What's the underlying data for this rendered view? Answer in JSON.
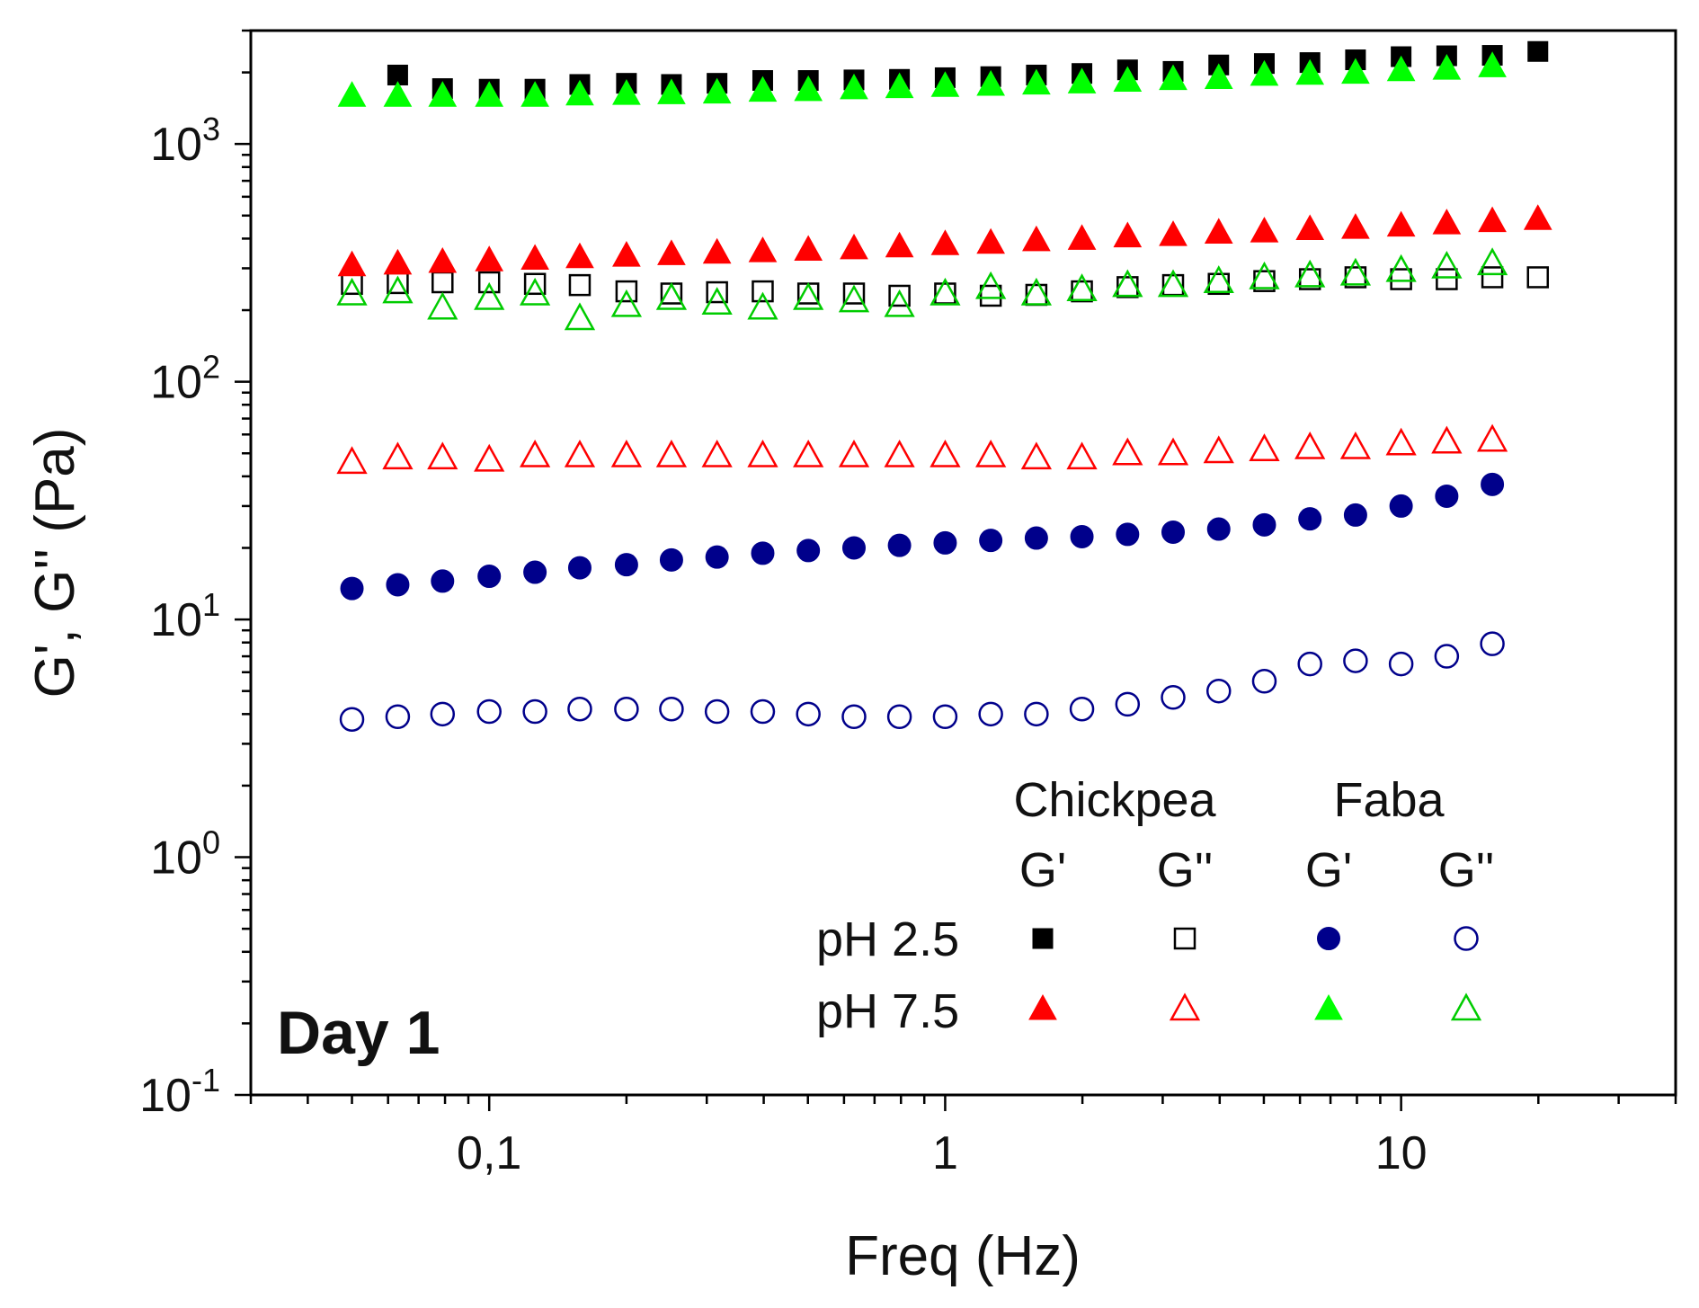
{
  "chart_data": {
    "type": "scatter",
    "title": "",
    "xlabel": "Freq (Hz)",
    "ylabel": "G', G'' (Pa)",
    "xscale": "log",
    "yscale": "log",
    "xlim": [
      0.03,
      40
    ],
    "ylim": [
      0.1,
      3000
    ],
    "x_ticks": [
      {
        "value": 0.1,
        "label": "0,1"
      },
      {
        "value": 1,
        "label": "1"
      },
      {
        "value": 10,
        "label": "10"
      }
    ],
    "y_ticks": [
      {
        "value": 0.1,
        "base": "10",
        "exp": "-1"
      },
      {
        "value": 1,
        "base": "10",
        "exp": "0"
      },
      {
        "value": 10,
        "base": "10",
        "exp": "1"
      },
      {
        "value": 100,
        "base": "10",
        "exp": "2"
      },
      {
        "value": 1000,
        "base": "10",
        "exp": "3"
      }
    ],
    "annotation": "Day 1",
    "legend": {
      "position": "bottom-right",
      "groups": [
        "Chickpea",
        "Faba"
      ],
      "moduli": [
        "G'",
        "G''",
        "G'",
        "G''"
      ],
      "rows": [
        "pH 2.5",
        "pH 7.5"
      ]
    },
    "series": [
      {
        "name": "Chickpea G' pH 2.5",
        "marker": "square",
        "filled": true,
        "color": "#000000",
        "x": [
          0.063,
          0.079,
          0.1,
          0.126,
          0.158,
          0.2,
          0.251,
          0.316,
          0.398,
          0.501,
          0.631,
          0.794,
          1.0,
          1.259,
          1.585,
          1.995,
          2.512,
          3.162,
          3.981,
          5.012,
          6.31,
          7.943,
          10.0,
          12.59,
          15.85,
          19.95
        ],
        "y": [
          1950,
          1710,
          1700,
          1700,
          1780,
          1800,
          1780,
          1800,
          1850,
          1850,
          1860,
          1870,
          1900,
          1920,
          1950,
          1980,
          2050,
          2020,
          2150,
          2180,
          2200,
          2260,
          2330,
          2350,
          2360,
          2450
        ]
      },
      {
        "name": "Chickpea G'' pH 2.5",
        "marker": "square",
        "filled": false,
        "color": "#000000",
        "x": [
          0.05,
          0.063,
          0.079,
          0.1,
          0.126,
          0.158,
          0.2,
          0.251,
          0.316,
          0.398,
          0.501,
          0.631,
          0.794,
          1.0,
          1.259,
          1.585,
          1.995,
          2.512,
          3.162,
          3.981,
          5.012,
          6.31,
          7.943,
          10.0,
          12.59,
          15.85,
          19.95
        ],
        "y": [
          258,
          260,
          262,
          262,
          258,
          255,
          240,
          235,
          238,
          240,
          235,
          235,
          230,
          235,
          230,
          232,
          240,
          250,
          255,
          258,
          265,
          270,
          275,
          270,
          270,
          275,
          275
        ]
      },
      {
        "name": "Chickpea G' pH 7.5",
        "marker": "triangle",
        "filled": true,
        "color": "#ff0000",
        "x": [
          0.05,
          0.063,
          0.079,
          0.1,
          0.126,
          0.158,
          0.2,
          0.251,
          0.316,
          0.398,
          0.501,
          0.631,
          0.794,
          1.0,
          1.259,
          1.585,
          1.995,
          2.512,
          3.162,
          3.981,
          5.012,
          6.31,
          7.943,
          10.0,
          12.59,
          15.85,
          19.95
        ],
        "y": [
          310,
          315,
          320,
          325,
          330,
          335,
          340,
          345,
          350,
          355,
          360,
          365,
          372,
          380,
          385,
          395,
          400,
          410,
          415,
          425,
          430,
          440,
          445,
          455,
          465,
          475,
          485
        ]
      },
      {
        "name": "Chickpea G'' pH 7.5",
        "marker": "triangle",
        "filled": false,
        "color": "#ff0000",
        "x": [
          0.05,
          0.063,
          0.079,
          0.1,
          0.126,
          0.158,
          0.2,
          0.251,
          0.316,
          0.398,
          0.501,
          0.631,
          0.794,
          1.0,
          1.259,
          1.585,
          1.995,
          2.512,
          3.162,
          3.981,
          5.012,
          6.31,
          7.943,
          10.0,
          12.59,
          15.85
        ],
        "y": [
          46,
          48,
          48,
          47,
          49,
          49,
          49,
          49,
          49,
          49,
          49,
          49,
          49,
          49,
          49,
          48,
          48,
          50,
          50,
          51,
          52,
          53,
          53,
          55,
          56,
          57
        ]
      },
      {
        "name": "Faba G' pH 2.5",
        "marker": "circle",
        "filled": true,
        "color": "#00008b",
        "x": [
          0.05,
          0.063,
          0.079,
          0.1,
          0.126,
          0.158,
          0.2,
          0.251,
          0.316,
          0.398,
          0.501,
          0.631,
          0.794,
          1.0,
          1.259,
          1.585,
          1.995,
          2.512,
          3.162,
          3.981,
          5.012,
          6.31,
          7.943,
          10.0,
          12.59,
          15.85
        ],
        "y": [
          13.5,
          14.0,
          14.5,
          15.2,
          15.8,
          16.5,
          17.0,
          17.8,
          18.3,
          19.0,
          19.5,
          20.0,
          20.5,
          21.0,
          21.5,
          22.0,
          22.3,
          22.8,
          23.3,
          24.0,
          25.0,
          26.5,
          27.5,
          30.0,
          33.0,
          37.0
        ]
      },
      {
        "name": "Faba G'' pH 2.5",
        "marker": "circle",
        "filled": false,
        "color": "#00008b",
        "x": [
          0.05,
          0.063,
          0.079,
          0.1,
          0.126,
          0.158,
          0.2,
          0.251,
          0.316,
          0.398,
          0.501,
          0.631,
          0.794,
          1.0,
          1.259,
          1.585,
          1.995,
          2.512,
          3.162,
          3.981,
          5.012,
          6.31,
          7.943,
          10.0,
          12.59,
          15.85
        ],
        "y": [
          3.8,
          3.9,
          4.0,
          4.1,
          4.1,
          4.2,
          4.2,
          4.2,
          4.1,
          4.1,
          4.0,
          3.9,
          3.9,
          3.9,
          4.0,
          4.0,
          4.2,
          4.4,
          4.7,
          5.0,
          5.5,
          6.5,
          6.7,
          6.5,
          7.0,
          7.9
        ]
      },
      {
        "name": "Faba G' pH 7.5",
        "marker": "triangle",
        "filled": true,
        "color": "#00ff00",
        "x": [
          0.05,
          0.063,
          0.079,
          0.1,
          0.126,
          0.158,
          0.2,
          0.251,
          0.316,
          0.398,
          0.501,
          0.631,
          0.794,
          1.0,
          1.259,
          1.585,
          1.995,
          2.512,
          3.162,
          3.981,
          5.012,
          6.31,
          7.943,
          10.0,
          12.59,
          15.85
        ],
        "y": [
          1600,
          1600,
          1600,
          1600,
          1600,
          1620,
          1630,
          1640,
          1650,
          1680,
          1690,
          1720,
          1740,
          1760,
          1780,
          1800,
          1820,
          1850,
          1880,
          1900,
          1960,
          1980,
          2000,
          2050,
          2080,
          2130
        ]
      },
      {
        "name": "Faba G'' pH 7.5",
        "marker": "triangle",
        "filled": false,
        "color": "#00cc00",
        "x": [
          0.05,
          0.063,
          0.079,
          0.1,
          0.126,
          0.158,
          0.2,
          0.251,
          0.316,
          0.398,
          0.501,
          0.631,
          0.794,
          1.0,
          1.259,
          1.585,
          1.995,
          2.512,
          3.162,
          3.981,
          5.012,
          6.31,
          7.943,
          10.0,
          12.59,
          15.85
        ],
        "y": [
          235,
          240,
          205,
          225,
          235,
          185,
          210,
          225,
          215,
          205,
          225,
          220,
          210,
          235,
          250,
          235,
          245,
          255,
          255,
          265,
          275,
          280,
          285,
          295,
          305,
          315
        ]
      }
    ]
  }
}
